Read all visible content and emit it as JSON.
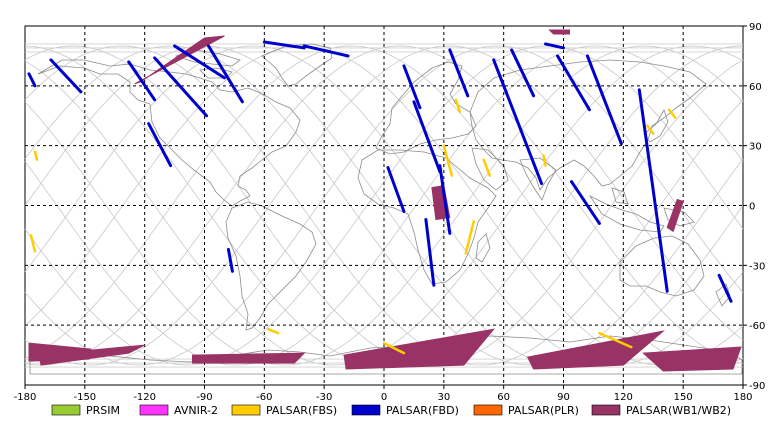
{
  "map": {
    "x_ticks": [
      "-180",
      "-150",
      "-120",
      "-90",
      "-60",
      "-30",
      "0",
      "30",
      "60",
      "90",
      "120",
      "150",
      "180"
    ],
    "y_ticks": [
      "90",
      "60",
      "30",
      "0",
      "-30",
      "-60",
      "-90"
    ],
    "lon_range": [
      -180,
      180
    ],
    "lat_range": [
      -90,
      90
    ],
    "grid": "dashed",
    "legend_position": "bottom"
  },
  "legend": [
    {
      "label": "PRSIM",
      "color": "#99cc33"
    },
    {
      "label": "AVNIR-2",
      "color": "#ff33ff"
    },
    {
      "label": "PALSAR(FBS)",
      "color": "#ffcc00"
    },
    {
      "label": "PALSAR(FBD)",
      "color": "#0000cc"
    },
    {
      "label": "PALSAR(PLR)",
      "color": "#ff6600"
    },
    {
      "label": "PALSAR(WB1/WB2)",
      "color": "#993366"
    }
  ],
  "coverage": {
    "fbd_swaths": [
      {
        "lon": [
          -178,
          -175
        ],
        "lat": [
          66,
          60
        ]
      },
      {
        "lon": [
          -167,
          -152
        ],
        "lat": [
          73,
          57
        ]
      },
      {
        "lon": [
          -128,
          -115
        ],
        "lat": [
          72,
          53
        ]
      },
      {
        "lon": [
          -118,
          -107
        ],
        "lat": [
          41,
          20
        ]
      },
      {
        "lon": [
          -115,
          -89
        ],
        "lat": [
          74,
          45
        ]
      },
      {
        "lon": [
          -105,
          -80
        ],
        "lat": [
          80,
          64
        ]
      },
      {
        "lon": [
          -88,
          -71
        ],
        "lat": [
          80,
          52
        ]
      },
      {
        "lon": [
          -60,
          -40
        ],
        "lat": [
          82,
          79
        ]
      },
      {
        "lon": [
          -40,
          -18
        ],
        "lat": [
          80,
          75
        ]
      },
      {
        "lon": [
          10,
          18
        ],
        "lat": [
          70,
          49
        ]
      },
      {
        "lon": [
          15,
          28
        ],
        "lat": [
          52,
          17
        ]
      },
      {
        "lon": [
          2,
          10
        ],
        "lat": [
          19,
          -3
        ]
      },
      {
        "lon": [
          28,
          33
        ],
        "lat": [
          20,
          -14
        ]
      },
      {
        "lon": [
          21,
          25
        ],
        "lat": [
          -7,
          -40
        ]
      },
      {
        "lon": [
          33,
          42
        ],
        "lat": [
          78,
          55
        ]
      },
      {
        "lon": [
          55,
          79
        ],
        "lat": [
          73,
          11
        ]
      },
      {
        "lon": [
          64,
          75
        ],
        "lat": [
          78,
          55
        ]
      },
      {
        "lon": [
          87,
          103
        ],
        "lat": [
          75,
          48
        ]
      },
      {
        "lon": [
          81,
          90
        ],
        "lat": [
          81,
          79
        ]
      },
      {
        "lon": [
          102,
          119
        ],
        "lat": [
          75,
          31
        ]
      },
      {
        "lon": [
          94,
          108
        ],
        "lat": [
          12,
          -9
        ]
      },
      {
        "lon": [
          128,
          142
        ],
        "lat": [
          58,
          -43
        ]
      },
      {
        "lon": [
          168,
          174
        ],
        "lat": [
          -35,
          -48
        ]
      },
      {
        "lon": [
          -78,
          -76
        ],
        "lat": [
          -22,
          -33
        ]
      }
    ],
    "fbs_swaths": [
      {
        "lon": [
          -175,
          -174
        ],
        "lat": [
          27,
          23
        ]
      },
      {
        "lon": [
          -177,
          -175
        ],
        "lat": [
          -15,
          -23
        ]
      },
      {
        "lon": [
          36,
          38
        ],
        "lat": [
          53,
          47
        ]
      },
      {
        "lon": [
          30,
          34
        ],
        "lat": [
          30,
          15
        ]
      },
      {
        "lon": [
          45,
          41
        ],
        "lat": [
          -8,
          -24
        ]
      },
      {
        "lon": [
          50,
          53
        ],
        "lat": [
          23,
          15
        ]
      },
      {
        "lon": [
          80,
          81
        ],
        "lat": [
          25,
          20
        ]
      },
      {
        "lon": [
          -58,
          -53
        ],
        "lat": [
          -62,
          -64
        ]
      },
      {
        "lon": [
          0,
          10
        ],
        "lat": [
          -69,
          -74
        ]
      },
      {
        "lon": [
          108,
          124
        ],
        "lat": [
          -64,
          -71
        ]
      },
      {
        "lon": [
          132,
          135
        ],
        "lat": [
          40,
          36
        ]
      },
      {
        "lon": [
          143,
          146
        ],
        "lat": [
          48,
          44
        ]
      }
    ],
    "wb_swaths": [
      {
        "lon": [
          -125,
          -80,
          -90,
          -122
        ],
        "lat": [
          61,
          85,
          84,
          62
        ]
      },
      {
        "lon": [
          -178,
          -147,
          -148,
          -178
        ],
        "lat": [
          -69,
          -72,
          -77,
          -78
        ]
      },
      {
        "lon": [
          -173,
          -120,
          -128,
          -172
        ],
        "lat": [
          -75,
          -70,
          -74,
          -80
        ]
      },
      {
        "lon": [
          -96,
          -40,
          -45,
          -96
        ],
        "lat": [
          -75,
          -74,
          -79,
          -79
        ]
      },
      {
        "lon": [
          -20,
          55,
          40,
          -19
        ],
        "lat": [
          -75,
          -62,
          -80,
          -82
        ]
      },
      {
        "lon": [
          72,
          140,
          120,
          75
        ],
        "lat": [
          -76,
          -63,
          -80,
          -82
        ]
      },
      {
        "lon": [
          130,
          179,
          175,
          140
        ],
        "lat": [
          -74,
          -71,
          -82,
          -83
        ]
      },
      {
        "lon": [
          24,
          30,
          33,
          26
        ],
        "lat": [
          9,
          10,
          -6,
          -7
        ]
      },
      {
        "lon": [
          142,
          145,
          150,
          147
        ],
        "lat": [
          -11,
          -13,
          2,
          3
        ]
      },
      {
        "lon": [
          83,
          93,
          93,
          85
        ],
        "lat": [
          88,
          88,
          86,
          86
        ]
      }
    ]
  }
}
